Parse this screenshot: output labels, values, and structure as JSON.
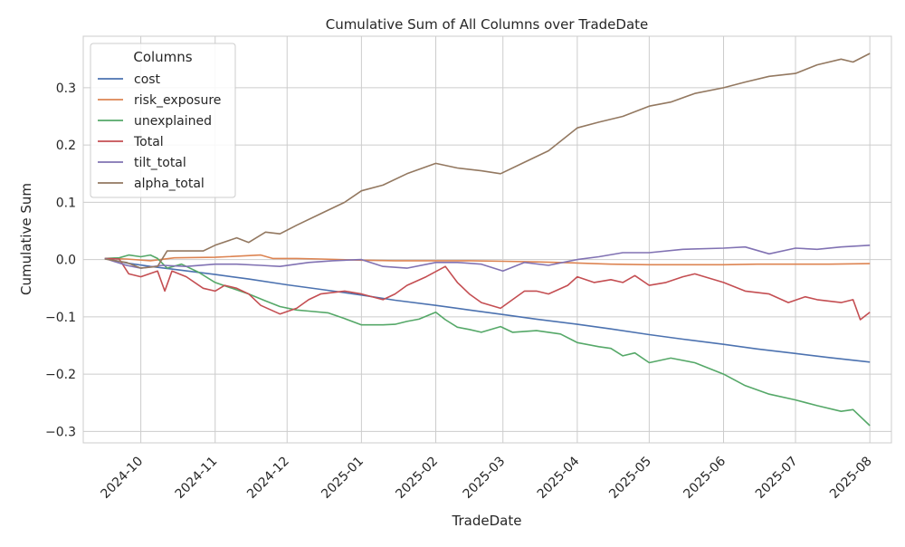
{
  "chart_data": {
    "type": "line",
    "title": "Cumulative Sum of All Columns over TradeDate",
    "xlabel": "TradeDate",
    "ylabel": "Cumulative Sum",
    "x_range": [
      "2024-09-07",
      "2025-08-10"
    ],
    "ylim": [
      -0.32,
      0.39
    ],
    "x_ticks": [
      "2024-10",
      "2024-11",
      "2024-12",
      "2025-01",
      "2025-02",
      "2025-03",
      "2025-04",
      "2025-05",
      "2025-06",
      "2025-07",
      "2025-08"
    ],
    "x_tick_dates": [
      "2024-10-01",
      "2024-11-01",
      "2024-12-01",
      "2025-01-01",
      "2025-02-01",
      "2025-03-01",
      "2025-04-01",
      "2025-05-01",
      "2025-06-01",
      "2025-07-01",
      "2025-08-01"
    ],
    "y_ticks": [
      -0.3,
      -0.2,
      -0.1,
      0.0,
      0.1,
      0.2,
      0.3
    ],
    "y_tick_labels": [
      "−0.3",
      "−0.2",
      "−0.1",
      "0.0",
      "0.1",
      "0.2",
      "0.3"
    ],
    "grid": true,
    "legend": {
      "title": "Columns",
      "placement": "top-left"
    },
    "series": [
      {
        "name": "cost",
        "color": "#4c72b0",
        "points": [
          [
            "2024-09-16",
            0.002
          ],
          [
            "2024-09-25",
            -0.006
          ],
          [
            "2024-10-05",
            -0.012
          ],
          [
            "2024-10-15",
            -0.017
          ],
          [
            "2024-11-01",
            -0.026
          ],
          [
            "2024-11-15",
            -0.034
          ],
          [
            "2024-12-01",
            -0.044
          ],
          [
            "2024-12-15",
            -0.052
          ],
          [
            "2025-01-01",
            -0.062
          ],
          [
            "2025-01-15",
            -0.071
          ],
          [
            "2025-02-01",
            -0.08
          ],
          [
            "2025-02-15",
            -0.088
          ],
          [
            "2025-03-01",
            -0.096
          ],
          [
            "2025-03-15",
            -0.104
          ],
          [
            "2025-04-01",
            -0.113
          ],
          [
            "2025-04-15",
            -0.121
          ],
          [
            "2025-05-01",
            -0.131
          ],
          [
            "2025-05-15",
            -0.139
          ],
          [
            "2025-06-01",
            -0.148
          ],
          [
            "2025-06-15",
            -0.156
          ],
          [
            "2025-07-01",
            -0.164
          ],
          [
            "2025-07-15",
            -0.171
          ],
          [
            "2025-08-01",
            -0.179
          ]
        ]
      },
      {
        "name": "risk_exposure",
        "color": "#dd8452",
        "points": [
          [
            "2024-09-16",
            0.002
          ],
          [
            "2024-09-25",
            0.001
          ],
          [
            "2024-10-05",
            -0.002
          ],
          [
            "2024-10-15",
            0.003
          ],
          [
            "2024-11-01",
            0.004
          ],
          [
            "2024-11-20",
            0.008
          ],
          [
            "2024-11-25",
            0.002
          ],
          [
            "2024-12-05",
            0.002
          ],
          [
            "2024-12-15",
            0.001
          ],
          [
            "2025-01-01",
            -0.001
          ],
          [
            "2025-01-15",
            -0.002
          ],
          [
            "2025-02-01",
            -0.002
          ],
          [
            "2025-02-15",
            -0.002
          ],
          [
            "2025-03-01",
            -0.003
          ],
          [
            "2025-03-15",
            -0.004
          ],
          [
            "2025-04-01",
            -0.006
          ],
          [
            "2025-04-15",
            -0.008
          ],
          [
            "2025-05-01",
            -0.009
          ],
          [
            "2025-05-15",
            -0.009
          ],
          [
            "2025-06-01",
            -0.009
          ],
          [
            "2025-06-15",
            -0.008
          ],
          [
            "2025-07-01",
            -0.008
          ],
          [
            "2025-07-15",
            -0.008
          ],
          [
            "2025-08-01",
            -0.007
          ]
        ]
      },
      {
        "name": "unexplained",
        "color": "#55a868",
        "points": [
          [
            "2024-09-16",
            0.002
          ],
          [
            "2024-09-22",
            0.003
          ],
          [
            "2024-09-26",
            0.008
          ],
          [
            "2024-10-01",
            0.005
          ],
          [
            "2024-10-05",
            0.008
          ],
          [
            "2024-10-08",
            0.002
          ],
          [
            "2024-10-12",
            -0.015
          ],
          [
            "2024-10-18",
            -0.008
          ],
          [
            "2024-10-25",
            -0.022
          ],
          [
            "2024-11-01",
            -0.04
          ],
          [
            "2024-11-08",
            -0.05
          ],
          [
            "2024-11-15",
            -0.06
          ],
          [
            "2024-11-22",
            -0.072
          ],
          [
            "2024-11-28",
            -0.082
          ],
          [
            "2024-12-05",
            -0.088
          ],
          [
            "2024-12-10",
            -0.09
          ],
          [
            "2024-12-18",
            -0.093
          ],
          [
            "2024-12-25",
            -0.103
          ],
          [
            "2025-01-01",
            -0.114
          ],
          [
            "2025-01-10",
            -0.114
          ],
          [
            "2025-01-15",
            -0.113
          ],
          [
            "2025-01-20",
            -0.108
          ],
          [
            "2025-01-25",
            -0.104
          ],
          [
            "2025-02-01",
            -0.092
          ],
          [
            "2025-02-05",
            -0.105
          ],
          [
            "2025-02-10",
            -0.118
          ],
          [
            "2025-02-15",
            -0.122
          ],
          [
            "2025-02-20",
            -0.127
          ],
          [
            "2025-02-28",
            -0.117
          ],
          [
            "2025-03-05",
            -0.127
          ],
          [
            "2025-03-15",
            -0.124
          ],
          [
            "2025-03-25",
            -0.13
          ],
          [
            "2025-04-01",
            -0.145
          ],
          [
            "2025-04-10",
            -0.152
          ],
          [
            "2025-04-15",
            -0.155
          ],
          [
            "2025-04-20",
            -0.168
          ],
          [
            "2025-04-25",
            -0.163
          ],
          [
            "2025-05-01",
            -0.18
          ],
          [
            "2025-05-10",
            -0.172
          ],
          [
            "2025-05-20",
            -0.18
          ],
          [
            "2025-06-01",
            -0.2
          ],
          [
            "2025-06-10",
            -0.22
          ],
          [
            "2025-06-20",
            -0.235
          ],
          [
            "2025-07-01",
            -0.245
          ],
          [
            "2025-07-10",
            -0.255
          ],
          [
            "2025-07-20",
            -0.265
          ],
          [
            "2025-07-25",
            -0.262
          ],
          [
            "2025-08-01",
            -0.29
          ]
        ]
      },
      {
        "name": "Total",
        "color": "#c44e52",
        "points": [
          [
            "2024-09-16",
            0.002
          ],
          [
            "2024-09-22",
            0.001
          ],
          [
            "2024-09-26",
            -0.025
          ],
          [
            "2024-10-01",
            -0.03
          ],
          [
            "2024-10-08",
            -0.02
          ],
          [
            "2024-10-11",
            -0.055
          ],
          [
            "2024-10-14",
            -0.02
          ],
          [
            "2024-10-20",
            -0.03
          ],
          [
            "2024-10-27",
            -0.05
          ],
          [
            "2024-11-01",
            -0.055
          ],
          [
            "2024-11-05",
            -0.045
          ],
          [
            "2024-11-10",
            -0.05
          ],
          [
            "2024-11-15",
            -0.06
          ],
          [
            "2024-11-20",
            -0.08
          ],
          [
            "2024-11-28",
            -0.095
          ],
          [
            "2024-12-05",
            -0.085
          ],
          [
            "2024-12-10",
            -0.07
          ],
          [
            "2024-12-15",
            -0.06
          ],
          [
            "2024-12-25",
            -0.055
          ],
          [
            "2025-01-01",
            -0.06
          ],
          [
            "2025-01-10",
            -0.07
          ],
          [
            "2025-01-15",
            -0.06
          ],
          [
            "2025-01-20",
            -0.045
          ],
          [
            "2025-01-28",
            -0.03
          ],
          [
            "2025-02-05",
            -0.012
          ],
          [
            "2025-02-10",
            -0.04
          ],
          [
            "2025-02-15",
            -0.06
          ],
          [
            "2025-02-20",
            -0.075
          ],
          [
            "2025-02-28",
            -0.085
          ],
          [
            "2025-03-05",
            -0.07
          ],
          [
            "2025-03-10",
            -0.055
          ],
          [
            "2025-03-15",
            -0.055
          ],
          [
            "2025-03-20",
            -0.06
          ],
          [
            "2025-03-28",
            -0.045
          ],
          [
            "2025-04-01",
            -0.03
          ],
          [
            "2025-04-08",
            -0.04
          ],
          [
            "2025-04-15",
            -0.035
          ],
          [
            "2025-04-20",
            -0.04
          ],
          [
            "2025-04-25",
            -0.028
          ],
          [
            "2025-05-01",
            -0.045
          ],
          [
            "2025-05-08",
            -0.04
          ],
          [
            "2025-05-15",
            -0.03
          ],
          [
            "2025-05-20",
            -0.025
          ],
          [
            "2025-06-01",
            -0.04
          ],
          [
            "2025-06-10",
            -0.055
          ],
          [
            "2025-06-20",
            -0.06
          ],
          [
            "2025-06-28",
            -0.075
          ],
          [
            "2025-07-05",
            -0.065
          ],
          [
            "2025-07-10",
            -0.07
          ],
          [
            "2025-07-20",
            -0.075
          ],
          [
            "2025-07-25",
            -0.07
          ],
          [
            "2025-07-28",
            -0.105
          ],
          [
            "2025-08-01",
            -0.092
          ]
        ]
      },
      {
        "name": "tilt_total",
        "color": "#8172b3",
        "points": [
          [
            "2024-09-16",
            0.002
          ],
          [
            "2024-09-25",
            -0.01
          ],
          [
            "2024-10-01",
            -0.015
          ],
          [
            "2024-10-10",
            -0.01
          ],
          [
            "2024-10-20",
            -0.012
          ],
          [
            "2024-11-01",
            -0.008
          ],
          [
            "2024-11-10",
            -0.008
          ],
          [
            "2024-11-20",
            -0.01
          ],
          [
            "2024-11-28",
            -0.012
          ],
          [
            "2024-12-10",
            -0.005
          ],
          [
            "2024-12-20",
            -0.002
          ],
          [
            "2025-01-01",
            0.0
          ],
          [
            "2025-01-10",
            -0.012
          ],
          [
            "2025-01-20",
            -0.015
          ],
          [
            "2025-02-01",
            -0.005
          ],
          [
            "2025-02-10",
            -0.005
          ],
          [
            "2025-02-20",
            -0.008
          ],
          [
            "2025-03-01",
            -0.02
          ],
          [
            "2025-03-10",
            -0.005
          ],
          [
            "2025-03-20",
            -0.01
          ],
          [
            "2025-04-01",
            0.0
          ],
          [
            "2025-04-10",
            0.005
          ],
          [
            "2025-04-20",
            0.012
          ],
          [
            "2025-05-01",
            0.012
          ],
          [
            "2025-05-15",
            0.018
          ],
          [
            "2025-06-01",
            0.02
          ],
          [
            "2025-06-10",
            0.022
          ],
          [
            "2025-06-20",
            0.01
          ],
          [
            "2025-07-01",
            0.02
          ],
          [
            "2025-07-10",
            0.018
          ],
          [
            "2025-07-20",
            0.022
          ],
          [
            "2025-08-01",
            0.025
          ]
        ]
      },
      {
        "name": "alpha_total",
        "color": "#937860",
        "points": [
          [
            "2024-09-16",
            0.001
          ],
          [
            "2024-09-25",
            -0.005
          ],
          [
            "2024-10-01",
            -0.015
          ],
          [
            "2024-10-08",
            -0.012
          ],
          [
            "2024-10-12",
            0.015
          ],
          [
            "2024-10-20",
            0.015
          ],
          [
            "2024-10-27",
            0.015
          ],
          [
            "2024-11-01",
            0.025
          ],
          [
            "2024-11-10",
            0.038
          ],
          [
            "2024-11-15",
            0.03
          ],
          [
            "2024-11-22",
            0.048
          ],
          [
            "2024-11-28",
            0.045
          ],
          [
            "2024-12-05",
            0.06
          ],
          [
            "2024-12-15",
            0.08
          ],
          [
            "2024-12-25",
            0.1
          ],
          [
            "2025-01-01",
            0.12
          ],
          [
            "2025-01-10",
            0.13
          ],
          [
            "2025-01-20",
            0.15
          ],
          [
            "2025-02-01",
            0.168
          ],
          [
            "2025-02-10",
            0.16
          ],
          [
            "2025-02-20",
            0.155
          ],
          [
            "2025-02-28",
            0.15
          ],
          [
            "2025-03-10",
            0.17
          ],
          [
            "2025-03-20",
            0.19
          ],
          [
            "2025-04-01",
            0.23
          ],
          [
            "2025-04-10",
            0.24
          ],
          [
            "2025-04-20",
            0.25
          ],
          [
            "2025-05-01",
            0.268
          ],
          [
            "2025-05-10",
            0.275
          ],
          [
            "2025-05-20",
            0.29
          ],
          [
            "2025-06-01",
            0.3
          ],
          [
            "2025-06-10",
            0.31
          ],
          [
            "2025-06-20",
            0.32
          ],
          [
            "2025-07-01",
            0.325
          ],
          [
            "2025-07-10",
            0.34
          ],
          [
            "2025-07-20",
            0.35
          ],
          [
            "2025-07-25",
            0.345
          ],
          [
            "2025-08-01",
            0.36
          ]
        ]
      }
    ]
  }
}
